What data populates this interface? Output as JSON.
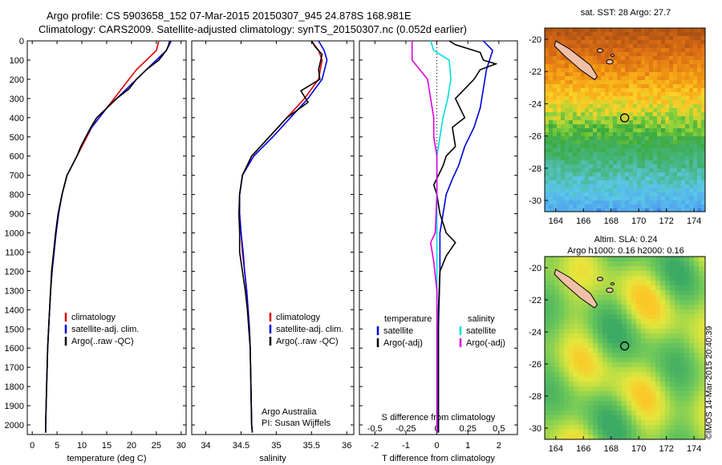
{
  "header": {
    "line1": "Argo profile: CS 5903658_152 07-Mar-2015 20150307_945 24.878S 168.981E",
    "line2": "Climatology: CARS2009. Satellite-adjusted climatology: synTS_20150307.nc (0.052d earlier)"
  },
  "maps": {
    "sst_title": "sat. SST: 28 Argo: 27.7",
    "sla_title1": "Altim. SLA: 0.24",
    "sla_title2": "Argo h1000: 0.16 h2000: 0.16",
    "xticks": [
      "164",
      "166",
      "168",
      "170",
      "172",
      "174"
    ],
    "yticks": [
      "-20",
      "-22",
      "-24",
      "-26",
      "-28",
      "-30"
    ],
    "colors": {
      "land": "#f0c0a8"
    }
  },
  "stamp": "©IMOS 14-Mar-2015 20:40:39",
  "chart_data": [
    {
      "type": "line",
      "title": "",
      "xlabel": "temperature (deg C)",
      "ylabel": "",
      "xlim": [
        -1,
        31
      ],
      "ylim": [
        2050,
        0
      ],
      "xticks": [
        0,
        5,
        10,
        15,
        20,
        25,
        30
      ],
      "yticks": [
        0,
        100,
        200,
        300,
        400,
        500,
        600,
        700,
        800,
        900,
        1000,
        1100,
        1200,
        1300,
        1400,
        1500,
        1600,
        1700,
        1800,
        1900,
        2000
      ],
      "legend": [
        "climatology",
        "satellite-adj. clim.",
        "Argo(..raw -QC)"
      ],
      "series": [
        {
          "name": "climatology",
          "color": "#dd0000",
          "points": [
            [
              25.5,
              0
            ],
            [
              25,
              50
            ],
            [
              23,
              100
            ],
            [
              21,
              150
            ],
            [
              19.5,
              200
            ],
            [
              18,
              250
            ],
            [
              16.5,
              300
            ],
            [
              15,
              350
            ],
            [
              13.5,
              400
            ],
            [
              12,
              450
            ],
            [
              11,
              500
            ],
            [
              10,
              550
            ],
            [
              9,
              600
            ],
            [
              8,
              650
            ],
            [
              7,
              700
            ],
            [
              6,
              800
            ],
            [
              5.3,
              900
            ],
            [
              4.8,
              1000
            ],
            [
              4.4,
              1100
            ],
            [
              4,
              1200
            ],
            [
              3.7,
              1300
            ],
            [
              3.5,
              1400
            ],
            [
              3.3,
              1500
            ],
            [
              3.1,
              1600
            ],
            [
              3,
              1700
            ],
            [
              2.9,
              1800
            ],
            [
              2.8,
              1900
            ],
            [
              2.7,
              2000
            ],
            [
              2.7,
              2040
            ]
          ]
        },
        {
          "name": "satellite-adj. clim.",
          "color": "#0000dd",
          "points": [
            [
              28,
              0
            ],
            [
              27,
              50
            ],
            [
              25,
              100
            ],
            [
              23,
              150
            ],
            [
              21,
              200
            ],
            [
              19,
              250
            ],
            [
              17,
              300
            ],
            [
              15,
              350
            ],
            [
              13.5,
              400
            ],
            [
              12,
              450
            ],
            [
              10.8,
              500
            ],
            [
              9.8,
              550
            ],
            [
              9,
              600
            ],
            [
              8,
              650
            ],
            [
              7,
              700
            ],
            [
              6,
              800
            ],
            [
              5.3,
              900
            ],
            [
              4.8,
              1000
            ],
            [
              4.4,
              1100
            ],
            [
              4,
              1200
            ],
            [
              3.7,
              1300
            ],
            [
              3.5,
              1400
            ],
            [
              3.3,
              1500
            ],
            [
              3.1,
              1600
            ],
            [
              3,
              1700
            ],
            [
              2.9,
              1800
            ],
            [
              2.8,
              1900
            ],
            [
              2.7,
              2000
            ],
            [
              2.7,
              2040
            ]
          ]
        },
        {
          "name": "Argo(..raw -QC)",
          "color": "#000000",
          "points": [
            [
              27.7,
              0
            ],
            [
              27.5,
              20
            ],
            [
              27,
              50
            ],
            [
              25.5,
              100
            ],
            [
              23,
              150
            ],
            [
              21,
              200
            ],
            [
              19.5,
              250
            ],
            [
              17,
              300
            ],
            [
              15,
              350
            ],
            [
              13,
              400
            ],
            [
              11.8,
              450
            ],
            [
              10.8,
              500
            ],
            [
              9.8,
              550
            ],
            [
              9,
              600
            ],
            [
              8,
              650
            ],
            [
              7,
              700
            ],
            [
              6,
              800
            ],
            [
              5.2,
              900
            ],
            [
              4.7,
              1000
            ],
            [
              4.3,
              1100
            ],
            [
              3.9,
              1200
            ],
            [
              3.7,
              1300
            ],
            [
              3.5,
              1400
            ],
            [
              3.3,
              1500
            ],
            [
              3.1,
              1600
            ],
            [
              3,
              1700
            ],
            [
              2.9,
              1800
            ],
            [
              2.8,
              1900
            ],
            [
              2.7,
              2000
            ],
            [
              2.7,
              2040
            ]
          ]
        }
      ]
    },
    {
      "type": "line",
      "title": "",
      "xlabel": "salinity",
      "ylabel": "",
      "xlim": [
        33.8,
        36.1
      ],
      "ylim": [
        2050,
        0
      ],
      "xticks": [
        34,
        34.5,
        35,
        35.5,
        36
      ],
      "legend": [
        "climatology",
        "satellite-adj. clim.",
        "Argo(..raw -QC)"
      ],
      "annotation": [
        "Argo Australia",
        "PI: Susan Wijffels"
      ],
      "series": [
        {
          "name": "climatology",
          "color": "#dd0000",
          "points": [
            [
              35.5,
              0
            ],
            [
              35.6,
              50
            ],
            [
              35.65,
              100
            ],
            [
              35.6,
              200
            ],
            [
              35.4,
              300
            ],
            [
              35.15,
              400
            ],
            [
              34.9,
              500
            ],
            [
              34.65,
              600
            ],
            [
              34.52,
              700
            ],
            [
              34.48,
              800
            ],
            [
              34.48,
              900
            ],
            [
              34.5,
              1000
            ],
            [
              34.52,
              1100
            ],
            [
              34.55,
              1200
            ],
            [
              34.58,
              1300
            ],
            [
              34.6,
              1400
            ],
            [
              34.62,
              1500
            ],
            [
              34.63,
              1600
            ],
            [
              34.64,
              1800
            ],
            [
              34.65,
              2000
            ],
            [
              34.66,
              2040
            ]
          ]
        },
        {
          "name": "satellite-adj. clim.",
          "color": "#0000dd",
          "points": [
            [
              35.6,
              0
            ],
            [
              35.68,
              50
            ],
            [
              35.72,
              100
            ],
            [
              35.65,
              200
            ],
            [
              35.45,
              300
            ],
            [
              35.2,
              400
            ],
            [
              34.95,
              500
            ],
            [
              34.68,
              600
            ],
            [
              34.52,
              700
            ],
            [
              34.48,
              800
            ],
            [
              34.48,
              900
            ],
            [
              34.5,
              1000
            ],
            [
              34.53,
              1100
            ],
            [
              34.55,
              1200
            ],
            [
              34.58,
              1300
            ],
            [
              34.6,
              1400
            ],
            [
              34.62,
              1500
            ],
            [
              34.63,
              1600
            ],
            [
              34.64,
              1800
            ],
            [
              34.65,
              2000
            ],
            [
              34.66,
              2040
            ]
          ]
        },
        {
          "name": "Argo(..raw -QC)",
          "color": "#000000",
          "points": [
            [
              35.5,
              0
            ],
            [
              35.55,
              30
            ],
            [
              35.65,
              70
            ],
            [
              35.6,
              150
            ],
            [
              35.62,
              200
            ],
            [
              35.35,
              260
            ],
            [
              35.45,
              320
            ],
            [
              35.15,
              400
            ],
            [
              34.9,
              500
            ],
            [
              34.65,
              600
            ],
            [
              34.52,
              700
            ],
            [
              34.48,
              800
            ],
            [
              34.47,
              900
            ],
            [
              34.48,
              1000
            ],
            [
              34.48,
              1100
            ],
            [
              34.52,
              1200
            ],
            [
              34.56,
              1300
            ],
            [
              34.59,
              1400
            ],
            [
              34.61,
              1500
            ],
            [
              34.63,
              1600
            ],
            [
              34.64,
              1800
            ],
            [
              34.65,
              2000
            ],
            [
              34.66,
              2040
            ]
          ]
        }
      ]
    },
    {
      "type": "line",
      "title": "",
      "xlabel": "T difference from climatology",
      "xlabel_top": "S difference from climatology",
      "ylabel": "",
      "xlim": [
        -2.5,
        2.6
      ],
      "ylim": [
        2050,
        0
      ],
      "xticks_T": [
        -2,
        -1,
        0,
        1,
        2
      ],
      "xticks_S": [
        "-0.5",
        "-0.25",
        "0",
        "0.25",
        "0.5"
      ],
      "xticks_S_pos": [
        -2,
        -1,
        0,
        1,
        2
      ],
      "legend_temperature_title": "temperature",
      "legend_salinity_title": "salinity",
      "legend": [
        "satellite",
        "Argo(-adj)",
        "satellite",
        "Argo(-adj)"
      ],
      "series": [
        {
          "name": "temperature satellite",
          "color": "#0000dd",
          "points": [
            [
              1.5,
              0
            ],
            [
              1.8,
              50
            ],
            [
              1.6,
              150
            ],
            [
              1.5,
              250
            ],
            [
              1.4,
              350
            ],
            [
              1.2,
              450
            ],
            [
              0.9,
              550
            ],
            [
              0.7,
              650
            ],
            [
              0.5,
              720
            ],
            [
              0.3,
              800
            ],
            [
              0.2,
              900
            ],
            [
              0.1,
              1000
            ],
            [
              0.1,
              1200
            ],
            [
              0.05,
              1500
            ],
            [
              0.05,
              1800
            ],
            [
              0.05,
              2040
            ]
          ]
        },
        {
          "name": "temperature Argo(-adj)",
          "color": "#000000",
          "points": [
            [
              0.4,
              0
            ],
            [
              0.6,
              20
            ],
            [
              1.4,
              60
            ],
            [
              1.5,
              100
            ],
            [
              1.9,
              120
            ],
            [
              1.4,
              150
            ],
            [
              1.2,
              200
            ],
            [
              0.6,
              300
            ],
            [
              0.9,
              400
            ],
            [
              0.5,
              450
            ],
            [
              0.6,
              550
            ],
            [
              0.3,
              600
            ],
            [
              0.2,
              650
            ],
            [
              -0.1,
              750
            ],
            [
              0,
              800
            ],
            [
              0.1,
              900
            ],
            [
              0.3,
              1000
            ],
            [
              0.6,
              1050
            ],
            [
              0.3,
              1120
            ],
            [
              0.1,
              1200
            ],
            [
              0.05,
              1400
            ],
            [
              0.05,
              1700
            ],
            [
              0.05,
              2040
            ]
          ]
        },
        {
          "name": "salinity satellite",
          "color": "#00dddd",
          "points": [
            [
              -0.2,
              0
            ],
            [
              -0.1,
              50
            ],
            [
              0.4,
              100
            ],
            [
              0.45,
              200
            ],
            [
              0.35,
              300
            ],
            [
              0.2,
              400
            ],
            [
              0.1,
              500
            ],
            [
              0,
              600
            ],
            [
              0,
              800
            ],
            [
              0,
              1000
            ],
            [
              0,
              1200
            ],
            [
              0,
              1500
            ],
            [
              0,
              1800
            ],
            [
              0,
              2040
            ]
          ]
        },
        {
          "name": "salinity Argo(-adj)",
          "color": "#dd00dd",
          "points": [
            [
              -0.8,
              0
            ],
            [
              -0.8,
              100
            ],
            [
              -0.3,
              200
            ],
            [
              -0.2,
              300
            ],
            [
              -0.1,
              400
            ],
            [
              -0.1,
              500
            ],
            [
              0,
              600
            ],
            [
              0,
              800
            ],
            [
              -0.05,
              1000
            ],
            [
              -0.2,
              1050
            ],
            [
              -0.1,
              1150
            ],
            [
              0,
              1300
            ],
            [
              0,
              1500
            ],
            [
              0,
              1800
            ],
            [
              0,
              2040
            ]
          ]
        }
      ]
    }
  ]
}
